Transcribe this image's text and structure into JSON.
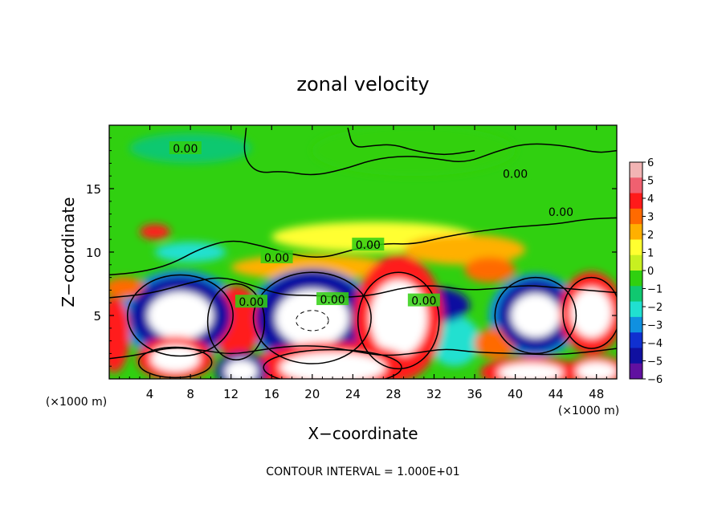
{
  "chart_data": {
    "type": "heatmap",
    "title": "zonal velocity",
    "xlabel": "X−coordinate",
    "ylabel": "Z−coordinate",
    "x_unit_label": "(×1000 m)",
    "y_unit_label": "(×1000 m)",
    "xlim": [
      0,
      50
    ],
    "ylim": [
      0,
      20
    ],
    "x_ticks": [
      4,
      8,
      12,
      16,
      20,
      24,
      28,
      32,
      36,
      40,
      44,
      48
    ],
    "y_ticks": [
      5,
      10,
      15
    ],
    "colorbar": {
      "ticks": [
        6,
        5,
        4,
        3,
        2,
        1,
        0,
        -1,
        -2,
        -3,
        -4,
        -5,
        -6
      ],
      "tick_labels": [
        "6",
        "5",
        "4",
        "3",
        "2",
        "1",
        "0",
        "−1",
        "−2",
        "−3",
        "−4",
        "−5",
        "−6"
      ],
      "range": [
        -6,
        6
      ],
      "colors": [
        "#f2b4b4",
        "#f06070",
        "#ff1a1a",
        "#ff6a00",
        "#ffb000",
        "#ffff30",
        "#c8f020",
        "#30d010",
        "#10c870",
        "#20e0d0",
        "#1090e0",
        "#1030d0",
        "#1010a0",
        "#6010a0"
      ]
    },
    "contour_labels": [
      "0.00",
      "0.00",
      "0.00",
      "0.00",
      "0.00",
      "0.00",
      "0.00",
      "0.00"
    ],
    "contour_label_positions": [
      [
        7.5,
        18.1
      ],
      [
        40,
        16.1
      ],
      [
        44.5,
        13.1
      ],
      [
        25.5,
        10.5
      ],
      [
        16.5,
        9.5
      ],
      [
        14,
        6
      ],
      [
        22,
        6.2
      ],
      [
        31,
        6.1
      ]
    ],
    "footer": "CONTOUR INTERVAL = 1.000E+01",
    "features": [
      {
        "x": 7.0,
        "z": 5.0,
        "value": -6,
        "rx": 4.0,
        "rz": 2.5
      },
      {
        "x": 7.0,
        "z": 5.0,
        "value": -3,
        "rx": 6.0,
        "rz": 3.6
      },
      {
        "x": 20.0,
        "z": 4.8,
        "value": -6,
        "rx": 4.5,
        "rz": 3.0
      },
      {
        "x": 20.0,
        "z": 4.8,
        "value": -3,
        "rx": 6.5,
        "rz": 3.9
      },
      {
        "x": 42.0,
        "z": 5.0,
        "value": -6,
        "rx": 3.0,
        "rz": 2.3
      },
      {
        "x": 42.0,
        "z": 5.0,
        "value": -3,
        "rx": 4.6,
        "rz": 3.3
      },
      {
        "x": 12.5,
        "z": 4.5,
        "value": 4,
        "rx": 2.5,
        "rz": 2.8
      },
      {
        "x": 28.5,
        "z": 4.8,
        "value": 6,
        "rx": 3.5,
        "rz": 4.0
      },
      {
        "x": 47.5,
        "z": 5.2,
        "value": 6,
        "rx": 2.5,
        "rz": 2.6
      },
      {
        "x": 0.5,
        "z": 3.5,
        "value": 4,
        "rx": 1.5,
        "rz": 3.0
      },
      {
        "x": 6.5,
        "z": 1.6,
        "value": 6,
        "rx": 3.0,
        "rz": 1.4
      },
      {
        "x": 22.0,
        "z": 0.9,
        "value": 6,
        "rx": 6.5,
        "rz": 1.6
      },
      {
        "x": 13.0,
        "z": 0.6,
        "value": -6,
        "rx": 2.0,
        "rz": 1.2
      },
      {
        "x": 41.5,
        "z": 0.5,
        "value": 6,
        "rx": 4.0,
        "rz": 1.0
      },
      {
        "x": 48.0,
        "z": 0.6,
        "value": 6,
        "rx": 2.5,
        "rz": 1.0
      },
      {
        "x": 32.0,
        "z": 5.8,
        "value": -5,
        "rx": 3.5,
        "rz": 1.4
      },
      {
        "x": 37.5,
        "z": 8.6,
        "value": 3,
        "rx": 2.5,
        "rz": 1.0
      },
      {
        "x": 4.5,
        "z": 11.6,
        "value": 4,
        "rx": 1.5,
        "rz": 0.6
      },
      {
        "x": 8.0,
        "z": 10.0,
        "value": -2,
        "rx": 3.5,
        "rz": 0.8
      },
      {
        "x": 1.5,
        "z": 7.2,
        "value": 3,
        "rx": 2.0,
        "rz": 0.8
      },
      {
        "x": 20.0,
        "z": 8.8,
        "value": 2,
        "rx": 8.0,
        "rz": 1.0
      },
      {
        "x": 35.0,
        "z": 10.2,
        "value": 2,
        "rx": 6.0,
        "rz": 1.2
      },
      {
        "x": 26.0,
        "z": 11.2,
        "value": 1,
        "rx": 10.0,
        "rz": 1.2
      },
      {
        "x": 8.0,
        "z": 18.2,
        "value": -1,
        "rx": 6.0,
        "rz": 1.2
      },
      {
        "x": 30.0,
        "z": 18.0,
        "value": 0,
        "rx": 10.0,
        "rz": 2.0
      },
      {
        "x": 38.0,
        "z": 2.8,
        "value": 3,
        "rx": 2.0,
        "rz": 1.2
      },
      {
        "x": 34.0,
        "z": 3.0,
        "value": -2,
        "rx": 2.5,
        "rz": 2.0
      }
    ]
  }
}
